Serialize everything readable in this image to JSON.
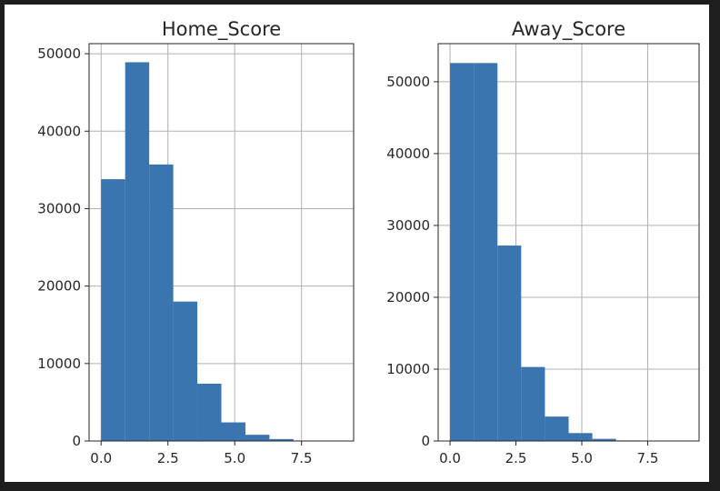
{
  "chart_data": [
    {
      "type": "bar",
      "title": "Home_Score",
      "xlabel": "",
      "ylabel": "",
      "bin_edges": [
        0,
        0.9,
        1.8,
        2.7,
        3.6,
        4.5,
        5.4,
        6.3,
        7.2,
        8.1,
        9.0
      ],
      "values": [
        33800,
        48900,
        35700,
        18000,
        7400,
        2400,
        800,
        250,
        60,
        20
      ],
      "xlim": [
        -0.45,
        9.45
      ],
      "ylim": [
        0,
        51300
      ],
      "xticks": [
        0.0,
        2.5,
        5.0,
        7.5
      ],
      "xtick_labels": [
        "0.0",
        "2.5",
        "5.0",
        "7.5"
      ],
      "yticks": [
        0,
        10000,
        20000,
        30000,
        40000,
        50000
      ],
      "ytick_labels": [
        "0",
        "10000",
        "20000",
        "30000",
        "40000",
        "50000"
      ],
      "grid": true,
      "bar_color": "#3a75b0"
    },
    {
      "type": "bar",
      "title": "Away_Score",
      "xlabel": "",
      "ylabel": "",
      "bin_edges": [
        0,
        0.9,
        1.8,
        2.7,
        3.6,
        4.5,
        5.4,
        6.3,
        7.2,
        8.1,
        9.0
      ],
      "values": [
        52600,
        52600,
        27200,
        10300,
        3400,
        1100,
        300,
        80,
        20,
        10
      ],
      "xlim": [
        -0.45,
        9.45
      ],
      "ylim": [
        0,
        55300
      ],
      "xticks": [
        0.0,
        2.5,
        5.0,
        7.5
      ],
      "xtick_labels": [
        "0.0",
        "2.5",
        "5.0",
        "7.5"
      ],
      "yticks": [
        0,
        10000,
        20000,
        30000,
        40000,
        50000
      ],
      "ytick_labels": [
        "0",
        "10000",
        "20000",
        "30000",
        "40000",
        "50000"
      ],
      "grid": true,
      "bar_color": "#3a75b0"
    }
  ]
}
